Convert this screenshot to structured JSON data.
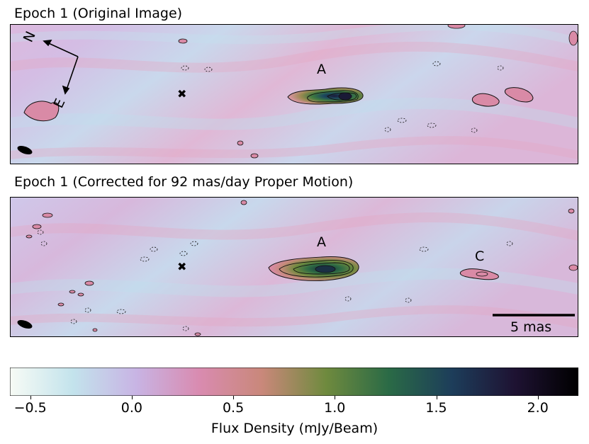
{
  "panels": [
    {
      "title": "Epoch 1 (Original Image)",
      "source_labels": [
        "A"
      ],
      "compass": {
        "north": "N",
        "east": "E"
      }
    },
    {
      "title": "Epoch 1 (Corrected for 92 mas/day Proper Motion)",
      "source_labels": [
        "A",
        "C"
      ],
      "scale_bar": "5 mas"
    }
  ],
  "colorbar": {
    "label": "Flux Density (mJy/Beam)",
    "min": -0.6,
    "max": 2.2,
    "ticks": [
      "−0.5",
      "0.0",
      "0.5",
      "1.0",
      "1.5",
      "2.0"
    ],
    "tick_values": [
      -0.5,
      0.0,
      0.5,
      1.0,
      1.5,
      2.0
    ],
    "colormap": [
      "#f7fbf5",
      "#c3e3ec",
      "#c8b4e4",
      "#d98bb0",
      "#c9887a",
      "#6f8a3e",
      "#2a6a46",
      "#1d3d5a",
      "#1e1232",
      "#000000"
    ]
  }
}
